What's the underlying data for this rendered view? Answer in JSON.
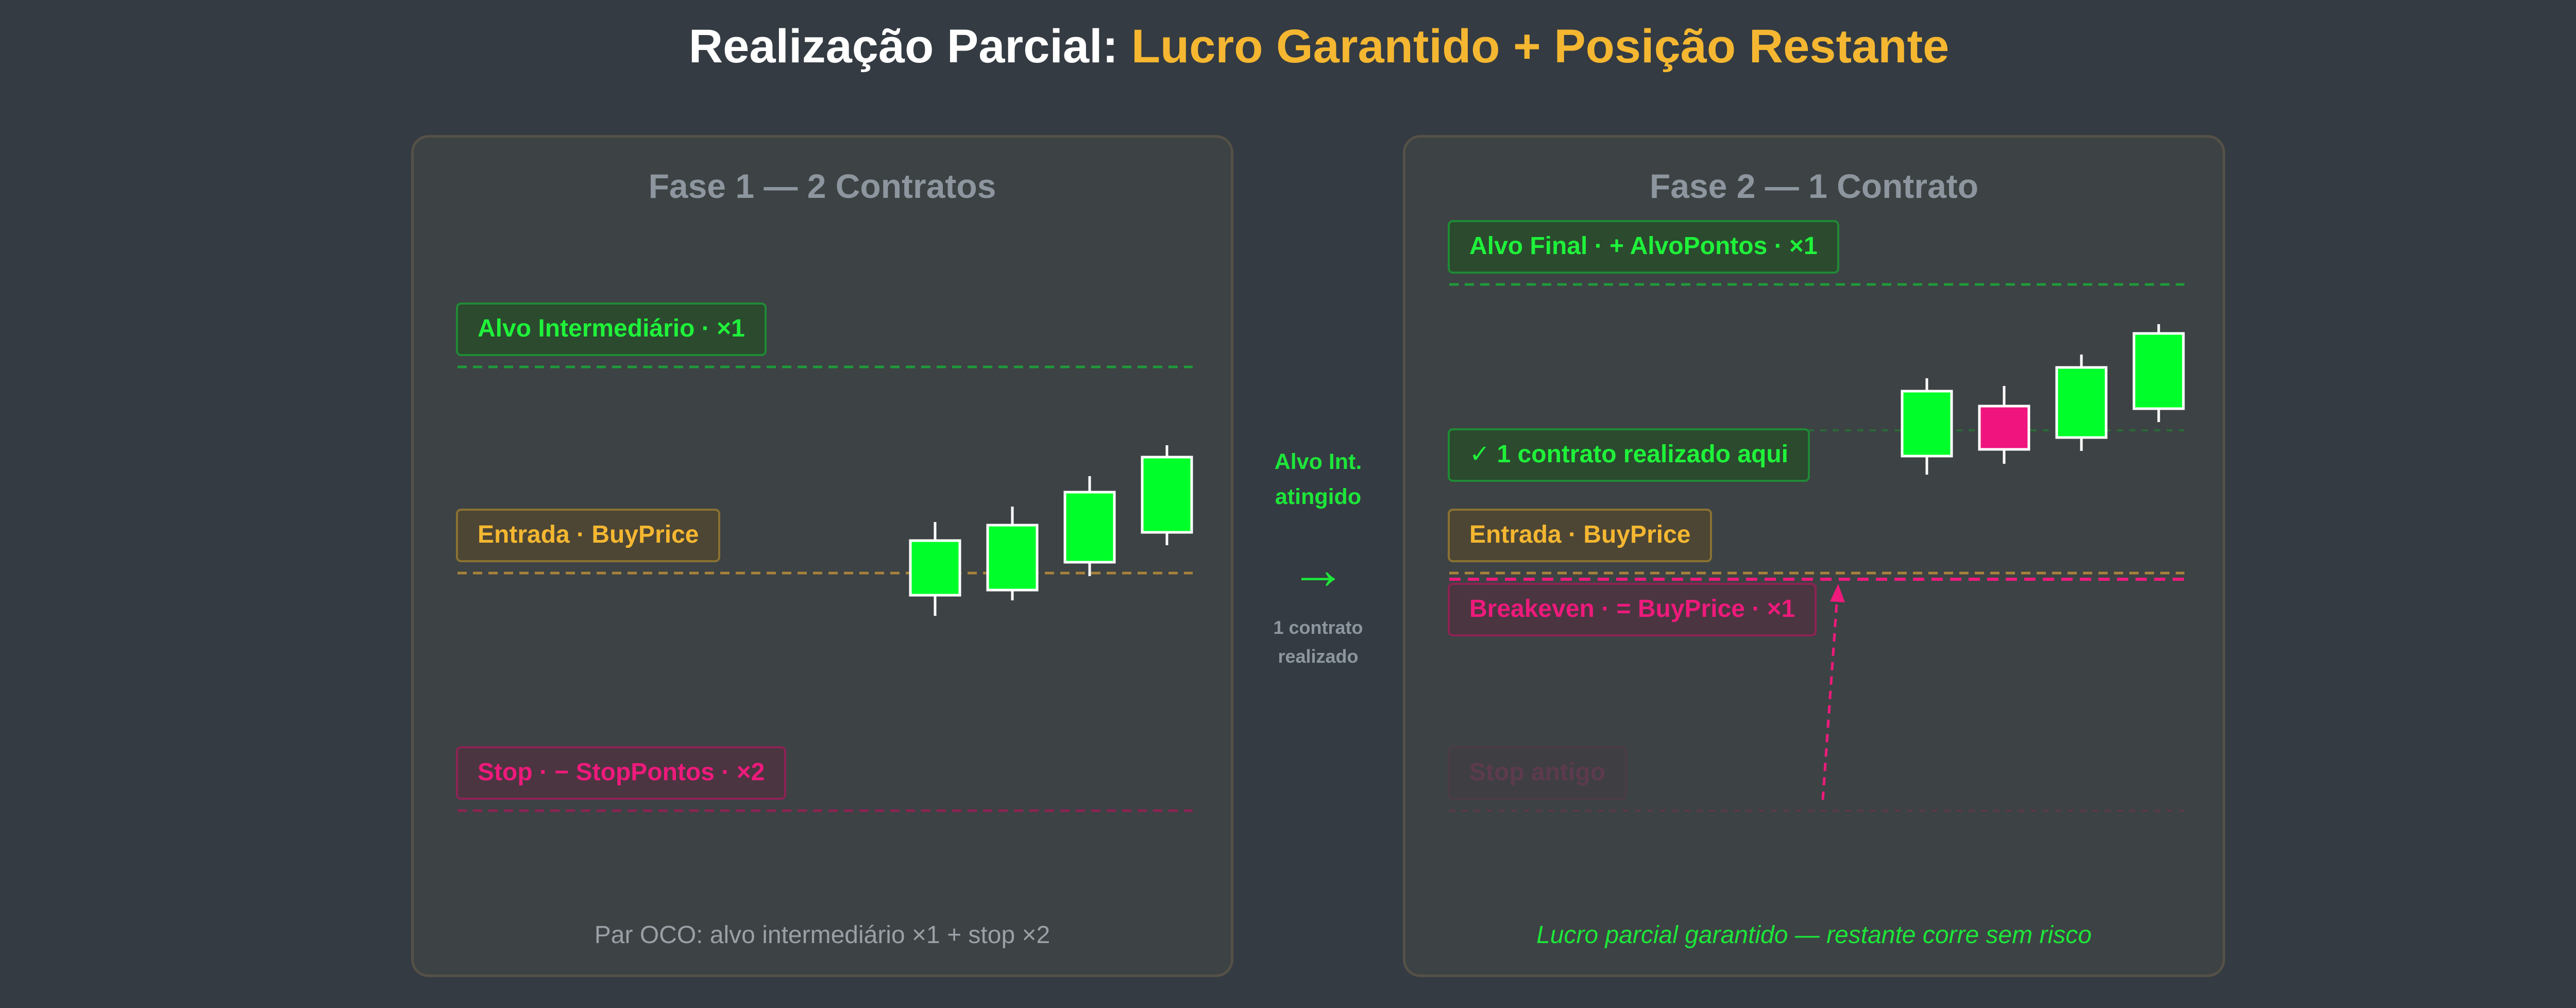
{
  "header": {
    "title_prefix": "Realização Parcial: ",
    "title_accent": "Lucro Garantido + Posição Restante"
  },
  "colors": {
    "green": "#1ff23a",
    "amber": "#f5b731",
    "pink": "#ee1a7c",
    "background": "#343b42"
  },
  "phase1": {
    "title": "Fase 1 — 2 Contratos",
    "target_label": "Alvo Intermediário · ×1",
    "entry_label": "Entrada · BuyPrice",
    "stop_label": "Stop · − StopPontos · ×2",
    "footer": "Par OCO: alvo intermediário ×1 + stop ×2"
  },
  "transition": {
    "label_line1": "Alvo Int.",
    "label_line2": "atingido",
    "arrow": "→",
    "note_line1": "1 contrato",
    "note_line2": "realizado"
  },
  "phase2": {
    "title": "Fase 2 — 1 Contrato",
    "final_target_label": "Alvo Final · + AlvoPontos · ×1",
    "realized_label": "✓ 1 contrato realizado aqui",
    "entry_label": "Entrada · BuyPrice",
    "breakeven_label": "Breakeven · = BuyPrice · ×1",
    "old_stop_label": "Stop antigo",
    "footer": "Lucro parcial garantido — restante corre sem risco"
  },
  "candles_phase1": [
    {
      "dir": "up"
    },
    {
      "dir": "up"
    },
    {
      "dir": "up"
    },
    {
      "dir": "up"
    }
  ],
  "candles_phase2": [
    {
      "dir": "up"
    },
    {
      "dir": "down"
    },
    {
      "dir": "up"
    },
    {
      "dir": "up"
    }
  ]
}
